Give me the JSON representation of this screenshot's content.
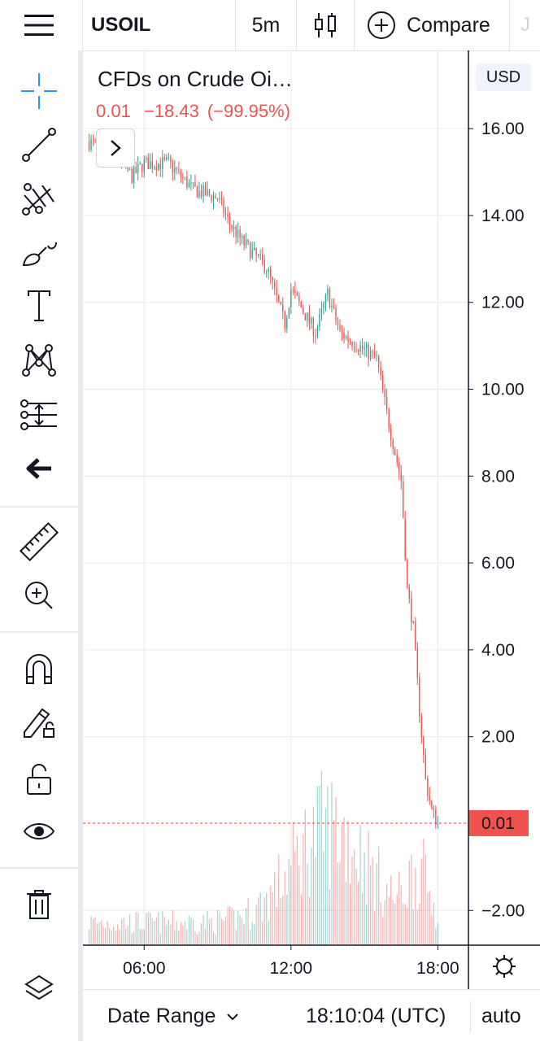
{
  "header": {
    "symbol": "USOIL",
    "interval": "5m",
    "compare_label": "Compare",
    "menu_icon": "hamburger-menu-icon",
    "chart_style_icon": "candlestick-style-icon",
    "compare_icon": "plus-circle-icon"
  },
  "sidebar": {
    "tools": [
      {
        "name": "crosshair-icon",
        "active": true
      },
      {
        "name": "trend-line-icon"
      },
      {
        "name": "pitchfork-icon"
      },
      {
        "name": "brush-icon"
      },
      {
        "name": "text-tool-icon"
      },
      {
        "name": "pattern-icon"
      },
      {
        "name": "prediction-icon"
      },
      {
        "name": "back-arrow-icon"
      },
      {
        "name": "ruler-icon"
      },
      {
        "name": "zoom-in-icon"
      },
      {
        "name": "magnet-icon"
      },
      {
        "name": "lock-drawing-icon"
      },
      {
        "name": "unlock-icon"
      },
      {
        "name": "eye-icon"
      },
      {
        "name": "trash-icon"
      },
      {
        "name": "layers-icon"
      }
    ]
  },
  "legend": {
    "title": "CFDs on Crude Oi…",
    "last": "0.01",
    "change": "−18.43",
    "change_pct": "(−99.95%)"
  },
  "price_axis": {
    "currency": "USD",
    "ticks": [
      "16.00",
      "14.00",
      "12.00",
      "10.00",
      "8.00",
      "6.00",
      "4.00",
      "2.00",
      "−2.00"
    ],
    "last_price_label": "0.01"
  },
  "time_axis": {
    "ticks": [
      "06:00",
      "12:00",
      "18:00"
    ]
  },
  "bottom_bar": {
    "date_range_label": "Date Range",
    "clock": "18:10:04 (UTC)",
    "scale_mode": "auto"
  },
  "colors": {
    "up": "#26a69a",
    "down": "#ef5350",
    "grid": "#e6ebf2",
    "accent": "#2196f3",
    "text": "#131722"
  },
  "chart_data": {
    "type": "candlestick",
    "title": "CFDs on Crude Oi…",
    "symbol": "USOIL",
    "interval": "5m",
    "ylim": [
      -2.8,
      17.8
    ],
    "y_ticks": [
      16,
      14,
      12,
      10,
      8,
      6,
      4,
      2,
      -2
    ],
    "x_ticks": [
      "06:00",
      "12:00",
      "18:00"
    ],
    "last_price": 0.01,
    "price_path": [
      {
        "time": "03:45",
        "price": 15.7
      },
      {
        "time": "05:00",
        "price": 15.3
      },
      {
        "time": "05:30",
        "price": 14.9
      },
      {
        "time": "06:00",
        "price": 15.2
      },
      {
        "time": "07:00",
        "price": 15.2
      },
      {
        "time": "08:00",
        "price": 14.6
      },
      {
        "time": "09:00",
        "price": 14.4
      },
      {
        "time": "09:30",
        "price": 13.8
      },
      {
        "time": "10:00",
        "price": 13.4
      },
      {
        "time": "11:00",
        "price": 12.8
      },
      {
        "time": "11:45",
        "price": 11.5
      },
      {
        "time": "12:00",
        "price": 12.3
      },
      {
        "time": "13:00",
        "price": 11.3
      },
      {
        "time": "13:30",
        "price": 12.2
      },
      {
        "time": "14:00",
        "price": 11.3
      },
      {
        "time": "15:00",
        "price": 10.9
      },
      {
        "time": "15:30",
        "price": 10.7
      },
      {
        "time": "16:00",
        "price": 9.2
      },
      {
        "time": "16:30",
        "price": 7.9
      },
      {
        "time": "16:45",
        "price": 5.4
      },
      {
        "time": "17:00",
        "price": 4.5
      },
      {
        "time": "17:15",
        "price": 2.6
      },
      {
        "time": "17:30",
        "price": 1.0
      },
      {
        "time": "17:45",
        "price": 0.3
      },
      {
        "time": "18:00",
        "price": 0.01
      }
    ],
    "volume": {
      "shown": true,
      "relative_max_time": "13:45"
    }
  }
}
